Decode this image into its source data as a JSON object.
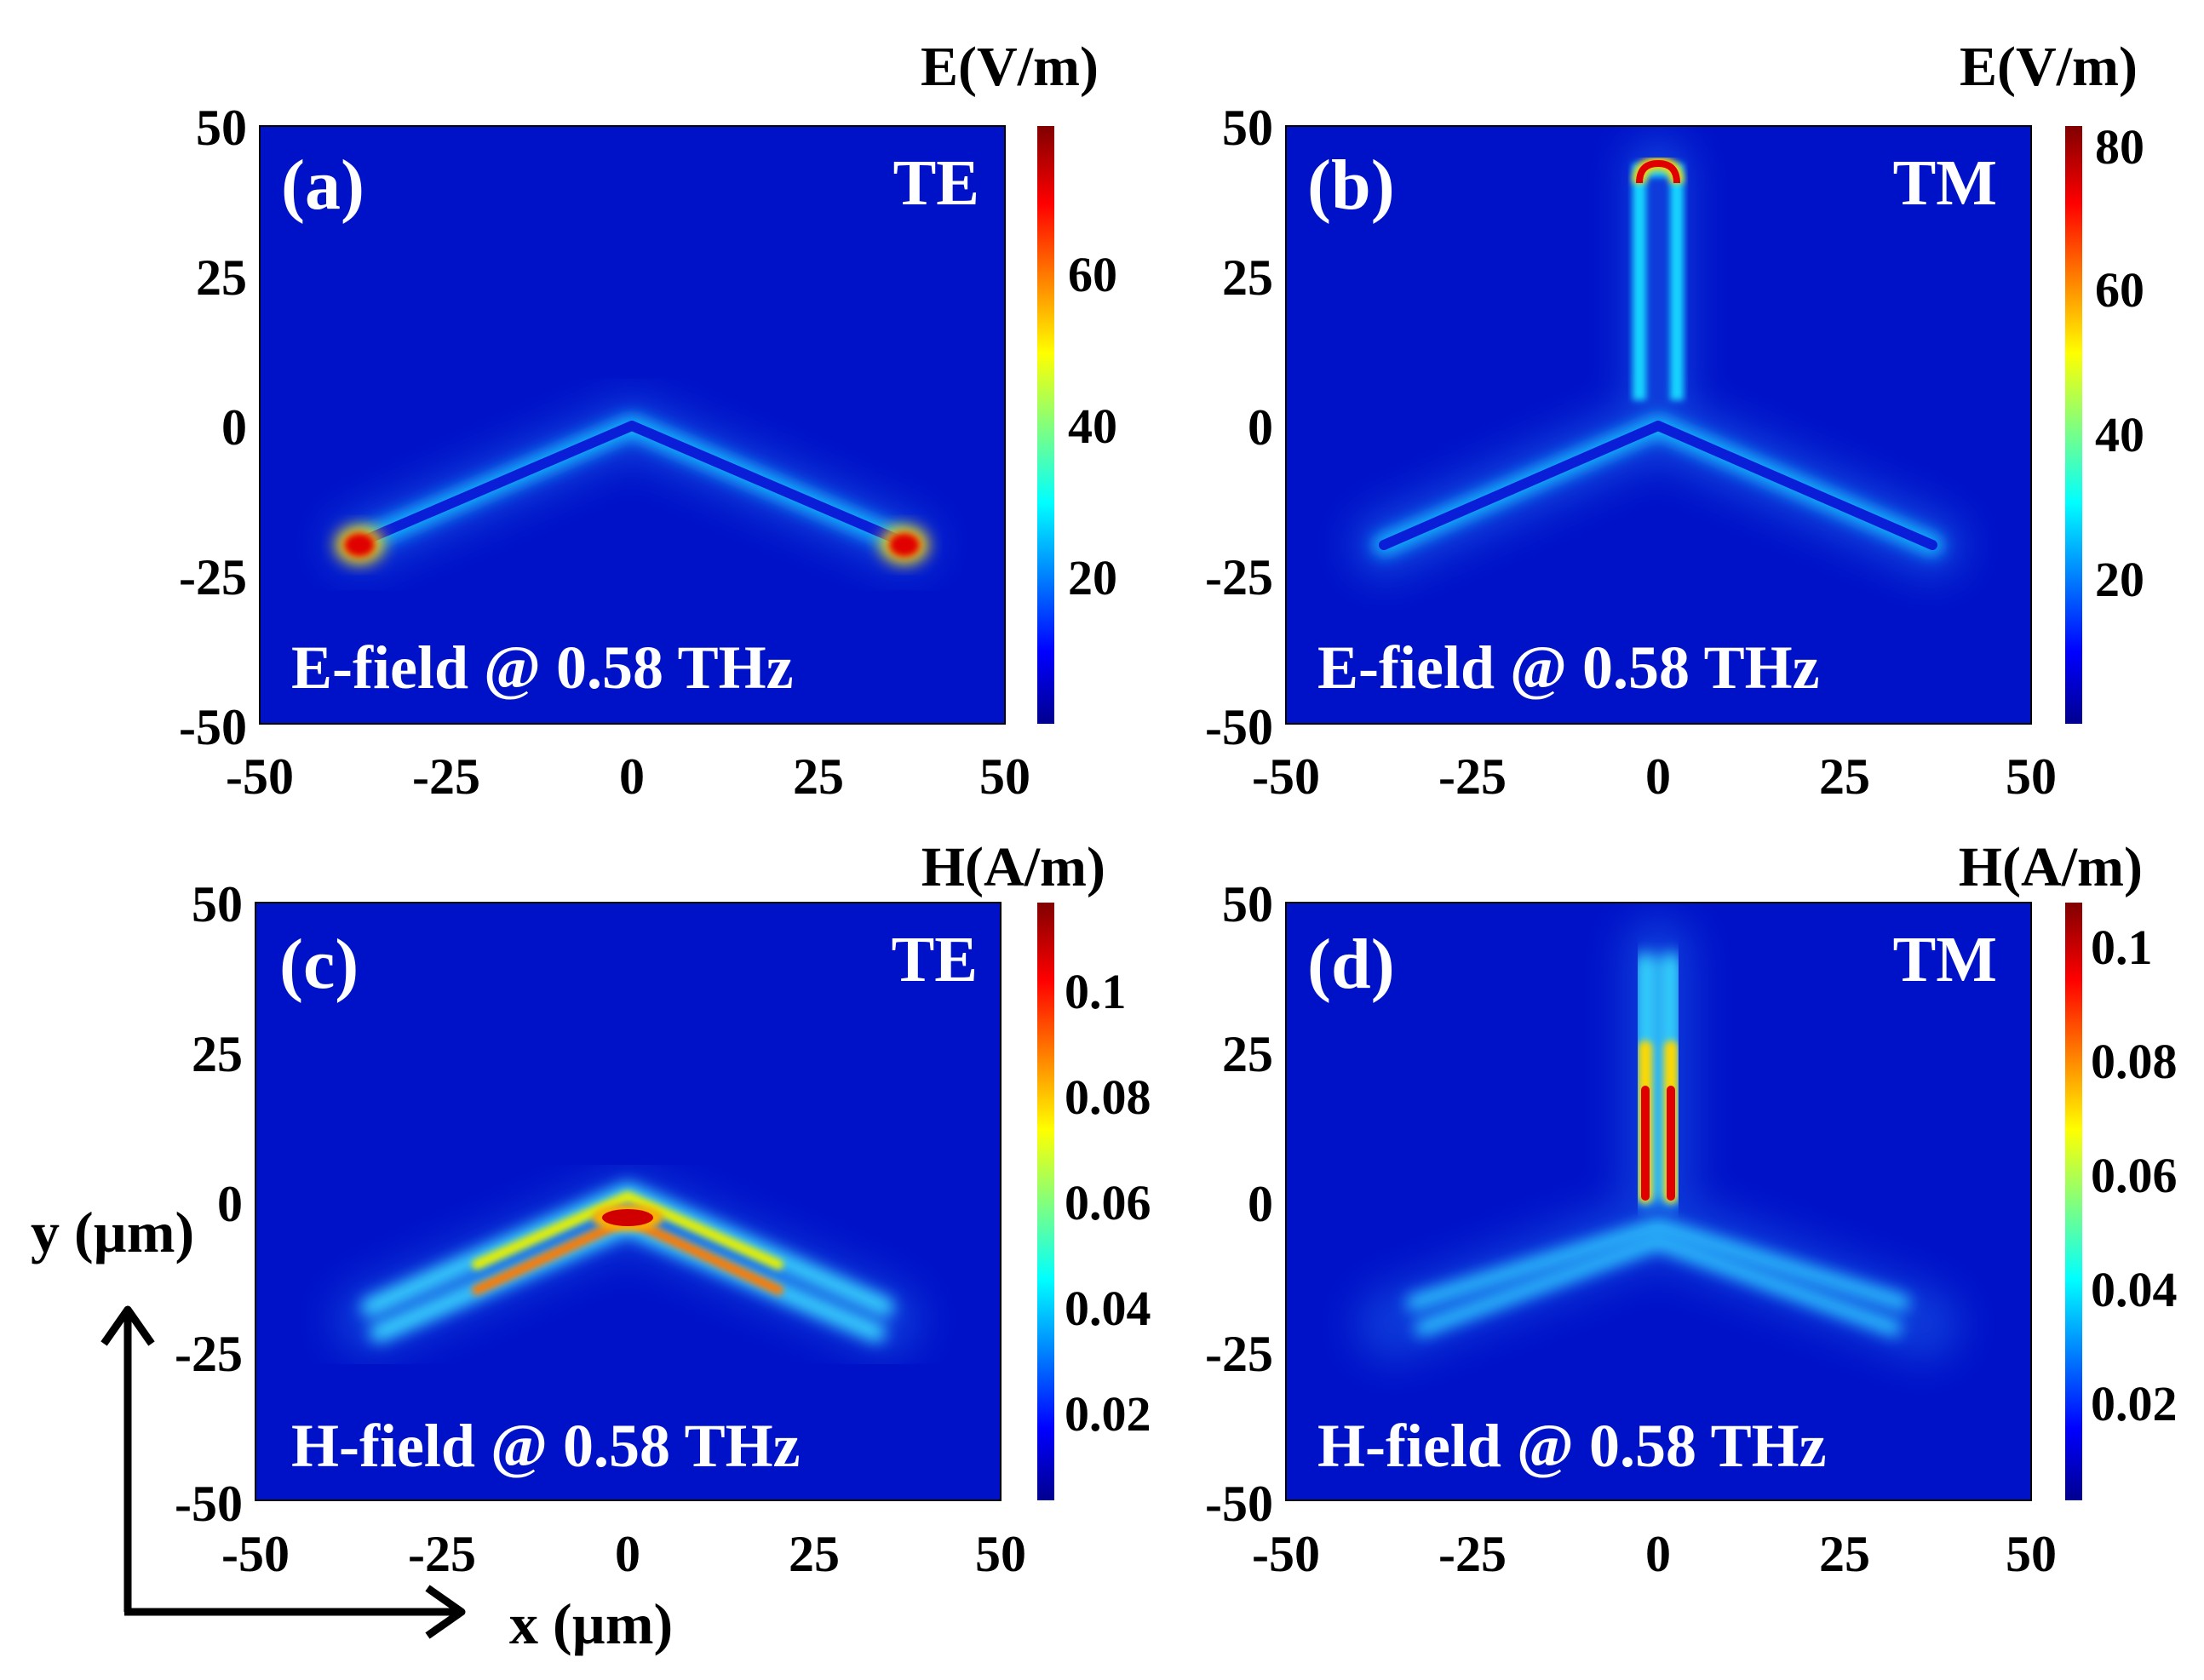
{
  "figure": {
    "axes_arrows": {
      "x_label": "x (µm)",
      "y_label": "y (µm)"
    }
  },
  "chart_data": [
    {
      "type": "heatmap",
      "panel_label": "(a)",
      "mode": "TE",
      "annotation": "E-field @ 0.58 THz",
      "colorbar": {
        "title": "E(V/m)",
        "ticks": [
          "20",
          "40",
          "60"
        ],
        "values": [
          20,
          40,
          60
        ],
        "range": [
          0,
          80
        ]
      },
      "xlim": [
        -50,
        50
      ],
      "ylim": [
        -50,
        50
      ],
      "xticks": [
        "-50",
        "-25",
        "0",
        "25",
        "50"
      ],
      "yticks": [
        "50",
        "25",
        "0",
        "-25",
        "-50"
      ],
      "structure": {
        "arms": [
          [
            -36,
            -20
          ],
          [
            36,
            -20
          ]
        ],
        "hotspot": "arm tips"
      }
    },
    {
      "type": "heatmap",
      "panel_label": "(b)",
      "mode": "TM",
      "annotation": "E-field @ 0.58 THz",
      "colorbar": {
        "title": "E(V/m)",
        "ticks": [
          "20",
          "40",
          "60",
          "80"
        ],
        "values": [
          20,
          40,
          60,
          80
        ],
        "range": [
          0,
          85
        ]
      },
      "xlim": [
        -50,
        50
      ],
      "ylim": [
        -50,
        50
      ],
      "xticks": [
        "-50",
        "-25",
        "0",
        "25",
        "50"
      ],
      "yticks": [
        "50",
        "25",
        "0",
        "-25",
        "-50"
      ],
      "structure": {
        "arms": [
          [
            0,
            42
          ],
          [
            -37,
            -20
          ],
          [
            37,
            -20
          ]
        ],
        "hotspot": "top arm tip"
      }
    },
    {
      "type": "heatmap",
      "panel_label": "(c)",
      "mode": "TE",
      "annotation": "H-field @ 0.58 THz",
      "colorbar": {
        "title": "H(A/m)",
        "ticks": [
          "0.02",
          "0.04",
          "0.06",
          "0.08",
          "0.1"
        ],
        "values": [
          0.02,
          0.04,
          0.06,
          0.08,
          0.1
        ],
        "range": [
          0,
          0.115
        ]
      },
      "xlim": [
        -50,
        50
      ],
      "ylim": [
        -50,
        50
      ],
      "xticks": [
        "-50",
        "-25",
        "0",
        "25",
        "50"
      ],
      "yticks": [
        "50",
        "25",
        "0",
        "-25",
        "-50"
      ],
      "structure": {
        "arms": [
          [
            -36,
            -20
          ],
          [
            36,
            -20
          ]
        ],
        "hotspot": "vertex"
      }
    },
    {
      "type": "heatmap",
      "panel_label": "(d)",
      "mode": "TM",
      "annotation": "H-field @ 0.58 THz",
      "colorbar": {
        "title": "H(A/m)",
        "ticks": [
          "0.02",
          "0.04",
          "0.06",
          "0.08",
          "0.1"
        ],
        "values": [
          0.02,
          0.04,
          0.06,
          0.08,
          0.1
        ],
        "range": [
          0,
          0.105
        ]
      },
      "xlim": [
        -50,
        50
      ],
      "ylim": [
        -50,
        50
      ],
      "xticks": [
        "-50",
        "-25",
        "0",
        "25",
        "50"
      ],
      "yticks": [
        "50",
        "25",
        "0",
        "-25",
        "-50"
      ],
      "structure": {
        "arms": [
          [
            0,
            40
          ],
          [
            -36,
            -20
          ],
          [
            36,
            -20
          ]
        ],
        "hotspot": "vertical arm"
      }
    }
  ]
}
